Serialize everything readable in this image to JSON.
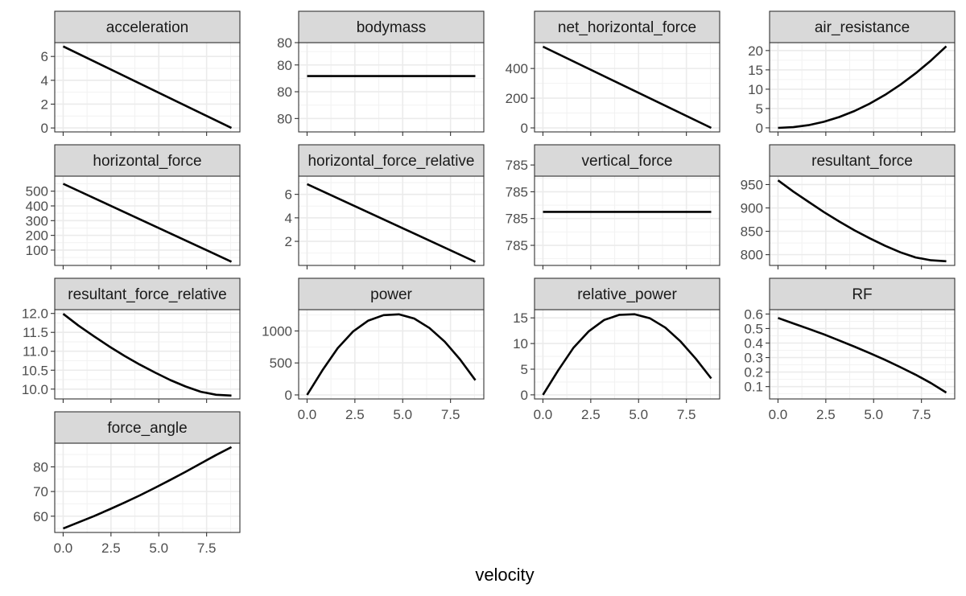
{
  "chart_data": {
    "type": "line",
    "layout": "facet_wrap",
    "facet_columns": 4,
    "xlabel": "velocity",
    "x_tick_labels": [
      "0.0",
      "2.5",
      "5.0",
      "7.5"
    ],
    "x_tick_values": [
      0,
      2.5,
      5,
      7.5
    ],
    "xlim": [
      -0.44,
      9.24
    ],
    "x_range": [
      0,
      8.8
    ],
    "grid": true,
    "theme": "bw",
    "line_color": "#000000",
    "strip_color": "#d9d9d9",
    "panels": [
      {
        "name": "acceleration",
        "ylim": [
          -0.33,
          7.16
        ],
        "y_tick_labels": [
          "0",
          "2",
          "4",
          "6"
        ],
        "y_tick_values": [
          0,
          2,
          4,
          6
        ],
        "x": [
          0,
          8.8
        ],
        "y": [
          6.84,
          0
        ]
      },
      {
        "name": "bodymass",
        "ylim": [
          -1,
          1
        ],
        "y_tick_labels": [
          "80",
          "80",
          "80",
          "80"
        ],
        "y_tick_values": [
          -0.7,
          -0.1,
          0.5,
          1.0
        ],
        "x": [
          0,
          8.8
        ],
        "y": [
          0.25,
          0.25
        ]
      },
      {
        "name": "net_horizontal_force",
        "ylim": [
          -27,
          574
        ],
        "y_tick_labels": [
          "0",
          "200",
          "400"
        ],
        "y_tick_values": [
          0,
          200,
          400
        ],
        "x": [
          0,
          8.8
        ],
        "y": [
          547,
          0
        ]
      },
      {
        "name": "air_resistance",
        "ylim": [
          -1.05,
          22.05
        ],
        "y_tick_labels": [
          "0",
          "5",
          "10",
          "15",
          "20"
        ],
        "y_tick_values": [
          0,
          5,
          10,
          15,
          20
        ],
        "x": [
          0,
          0.8,
          1.6,
          2.4,
          3.2,
          4.0,
          4.8,
          5.6,
          6.4,
          7.2,
          8.0,
          8.8
        ],
        "y": [
          0,
          0.17,
          0.7,
          1.57,
          2.79,
          4.36,
          6.28,
          8.54,
          11.16,
          14.12,
          17.43,
          21.1
        ]
      },
      {
        "name": "horizontal_force",
        "ylim": [
          -4,
          602
        ],
        "y_tick_labels": [
          "100",
          "200",
          "300",
          "400",
          "500"
        ],
        "y_tick_values": [
          100,
          200,
          300,
          400,
          500
        ],
        "x": [
          0,
          8.8
        ],
        "y": [
          550,
          21
        ]
      },
      {
        "name": "horizontal_force_relative",
        "ylim": [
          -0.05,
          7.55
        ],
        "y_tick_labels": [
          "2",
          "4",
          "6"
        ],
        "y_tick_values": [
          2,
          4,
          6
        ],
        "x": [
          0,
          8.8
        ],
        "y": [
          6.87,
          0.26
        ]
      },
      {
        "name": "vertical_force",
        "ylim": [
          -1,
          1
        ],
        "y_tick_labels": [
          "785",
          "785",
          "785",
          "785"
        ],
        "y_tick_values": [
          -0.55,
          0.05,
          0.65,
          1.25
        ],
        "x": [
          0,
          8.8
        ],
        "y": [
          0.2,
          0.2
        ]
      },
      {
        "name": "resultant_force",
        "ylim": [
          777,
          968
        ],
        "y_tick_labels": [
          "800",
          "850",
          "900",
          "950"
        ],
        "y_tick_values": [
          800,
          850,
          900,
          950
        ],
        "x": [
          0,
          0.8,
          1.6,
          2.4,
          3.2,
          4.0,
          4.8,
          5.6,
          6.4,
          7.2,
          8.0,
          8.8
        ],
        "y": [
          959,
          935,
          913,
          891,
          871,
          852,
          835,
          819,
          805,
          794,
          788,
          786
        ]
      },
      {
        "name": "resultant_force_relative",
        "ylim": [
          9.74,
          12.1
        ],
        "y_tick_labels": [
          "10.0",
          "10.5",
          "11.0",
          "11.5",
          "12.0"
        ],
        "y_tick_values": [
          10,
          10.5,
          11,
          11.5,
          12
        ],
        "x": [
          0,
          0.8,
          1.6,
          2.4,
          3.2,
          4.0,
          4.8,
          5.6,
          6.4,
          7.2,
          8.0,
          8.8
        ],
        "y": [
          11.99,
          11.68,
          11.4,
          11.13,
          10.88,
          10.65,
          10.44,
          10.24,
          10.07,
          9.93,
          9.85,
          9.83
        ]
      },
      {
        "name": "power",
        "ylim": [
          -63,
          1333
        ],
        "y_tick_labels": [
          "0",
          "500",
          "1000"
        ],
        "y_tick_values": [
          0,
          500,
          1000
        ],
        "x": [
          0,
          0.8,
          1.6,
          2.4,
          3.2,
          4.0,
          4.8,
          5.6,
          6.4,
          7.2,
          8.0,
          8.8
        ],
        "y": [
          0,
          385,
          731,
          991,
          1162,
          1248,
          1260,
          1195,
          1046,
          833,
          554,
          230
        ]
      },
      {
        "name": "relative_power",
        "ylim": [
          -0.8,
          16.6
        ],
        "y_tick_labels": [
          "0",
          "5",
          "10",
          "15"
        ],
        "y_tick_values": [
          0,
          5,
          10,
          15
        ],
        "x": [
          0,
          0.8,
          1.6,
          2.4,
          3.2,
          4.0,
          4.8,
          5.6,
          6.4,
          7.2,
          8.0,
          8.8
        ],
        "y": [
          0,
          4.8,
          9.2,
          12.4,
          14.6,
          15.6,
          15.7,
          14.9,
          13.1,
          10.4,
          7.0,
          3.2
        ]
      },
      {
        "name": "RF",
        "ylim": [
          0.015,
          0.63
        ],
        "y_tick_labels": [
          "0.1",
          "0.2",
          "0.3",
          "0.4",
          "0.5",
          "0.6"
        ],
        "y_tick_values": [
          0.1,
          0.2,
          0.3,
          0.4,
          0.5,
          0.6
        ],
        "x": [
          0,
          0.8,
          1.6,
          2.4,
          3.2,
          4.0,
          4.8,
          5.6,
          6.4,
          7.2,
          8.0,
          8.8
        ],
        "y": [
          0.573,
          0.535,
          0.498,
          0.46,
          0.418,
          0.375,
          0.33,
          0.284,
          0.234,
          0.182,
          0.124,
          0.059
        ]
      },
      {
        "name": "force_angle",
        "ylim": [
          53.4,
          89.6
        ],
        "y_tick_labels": [
          "60",
          "70",
          "80"
        ],
        "y_tick_values": [
          60,
          70,
          80
        ],
        "x": [
          0,
          0.8,
          1.6,
          2.4,
          3.2,
          4.0,
          4.8,
          5.6,
          6.4,
          7.2,
          8.0,
          8.8
        ],
        "y": [
          55.0,
          57.5,
          60.0,
          62.7,
          65.5,
          68.4,
          71.5,
          74.7,
          78.0,
          81.4,
          84.8,
          88.0
        ]
      }
    ]
  }
}
